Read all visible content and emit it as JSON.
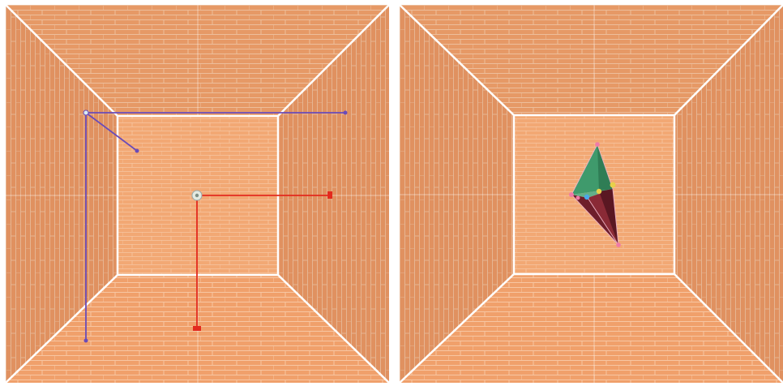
{
  "scene": {
    "colors": {
      "wall": "#f0a06b",
      "mortar": "#f9d2b4",
      "edge": "#ffffff",
      "gizmo_axis_purple": "#6a4bb8",
      "gizmo_axis_red": "#e32a1e",
      "gem_green": "#3f9a6c",
      "gem_dark_red": "#6e1e2a",
      "vertex_pink": "#f07aa8",
      "vertex_yellow": "#e7d04a",
      "vertex_blue": "#4aa8e8"
    },
    "icons": [
      "translate-gizmo-icon",
      "pivot-handle-icon",
      "crystal-mesh-icon"
    ]
  }
}
